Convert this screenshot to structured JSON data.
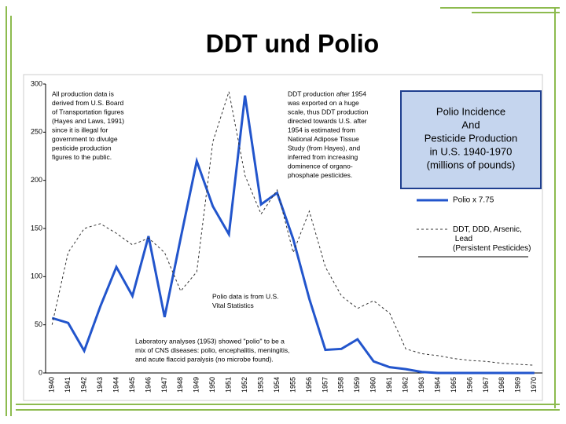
{
  "chart_data": {
    "type": "line",
    "title": "DDT und Polio",
    "categories": [
      "1940",
      "1941",
      "1942",
      "1943",
      "1944",
      "1945",
      "1946",
      "1947",
      "1948",
      "1949",
      "1950",
      "1951",
      "1952",
      "1953",
      "1954",
      "1955",
      "1956",
      "1957",
      "1958",
      "1959",
      "1960",
      "1961",
      "1962",
      "1963",
      "1964",
      "1965",
      "1966",
      "1967",
      "1968",
      "1969",
      "1970"
    ],
    "series": [
      {
        "name": "Polio x 7.75",
        "color": "#2255cc",
        "dashed": false,
        "values": [
          57,
          52,
          23,
          69,
          110,
          80,
          142,
          58,
          140,
          220,
          173,
          144,
          288,
          175,
          187,
          139,
          77,
          24,
          25,
          35,
          12,
          6,
          4,
          1,
          0,
          0,
          0,
          0,
          0,
          0,
          0
        ]
      },
      {
        "name": "DDT, DDD, Arsenic, Lead (Persistent Pesticides)",
        "color": "#333333",
        "dashed": true,
        "values": [
          50,
          125,
          150,
          155,
          145,
          133,
          140,
          125,
          85,
          105,
          240,
          292,
          205,
          165,
          190,
          125,
          168,
          110,
          80,
          67,
          75,
          62,
          25,
          20,
          18,
          15,
          13,
          12,
          10,
          9,
          8
        ]
      }
    ],
    "ylim": [
      0,
      300
    ],
    "yticks": [
      0,
      50,
      100,
      150,
      200,
      250,
      300
    ],
    "grid": false,
    "legend_title": [
      "Polio Incidence",
      "And",
      "Pesticide Production",
      "in U.S. 1940-1970",
      "(millions of pounds)"
    ],
    "annotations": [
      {
        "lines": [
          "All production data is",
          "derived from U.S. Board",
          "of Transportation figures",
          "(Hayes and Laws, 1991)",
          "since it is illegal for",
          "government to divulge",
          "pesticide production",
          "figures to the public."
        ]
      },
      {
        "lines": [
          "DDT production after 1954",
          "was exported on a huge",
          "scale, thus DDT production",
          "directed towards U.S. after",
          "1954 is estimated from",
          "National Adipose Tissue",
          "Study (from Hayes), and",
          "inferred from increasing",
          "dominence of organo-",
          "phosphate pesticides."
        ]
      },
      {
        "lines": [
          "Polio data is from U.S.",
          "Vital Statistics"
        ]
      },
      {
        "lines": [
          "Laboratory analyses (1953) showed \"polio\" to be a",
          "mix of CNS diseases: polio, encephalitis, meningitis,",
          "and acute flaccid paralysis (no microbe found)."
        ]
      }
    ]
  }
}
